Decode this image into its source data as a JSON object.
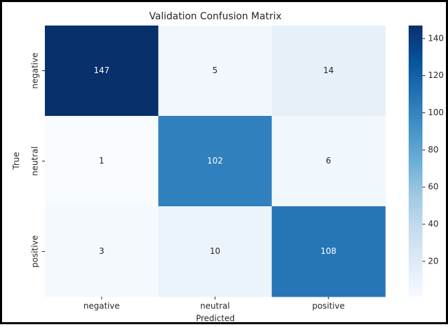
{
  "chart_data": {
    "type": "heatmap",
    "title": "Validation Confusion Matrix",
    "xlabel": "Predicted",
    "ylabel": "True",
    "x_categories": [
      "negative",
      "neutral",
      "positive"
    ],
    "y_categories": [
      "negative",
      "neutral",
      "positive"
    ],
    "values": [
      [
        147,
        5,
        14
      ],
      [
        1,
        102,
        6
      ],
      [
        3,
        10,
        108
      ]
    ],
    "zlim": [
      1,
      147
    ],
    "zticks": [
      20,
      40,
      60,
      80,
      100,
      120,
      140
    ],
    "colormap": [
      "#f7fbff",
      "#deebf7",
      "#c6dbef",
      "#9ecae1",
      "#6baed6",
      "#4292c6",
      "#2171b5",
      "#08519c",
      "#08306b"
    ]
  }
}
